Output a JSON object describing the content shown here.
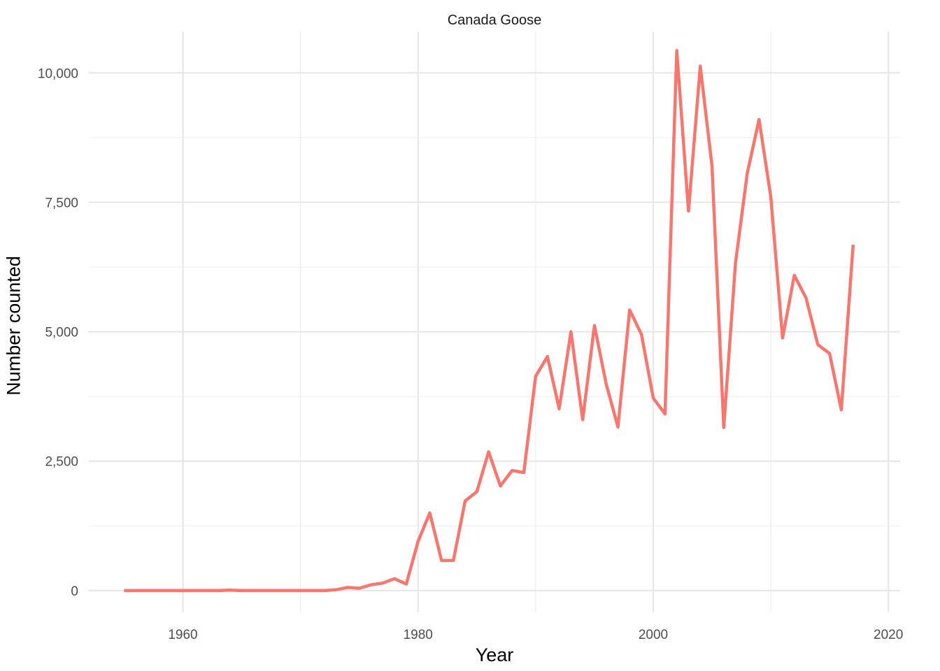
{
  "chart_data": {
    "type": "line",
    "title": "Canada Goose",
    "xlabel": "Year",
    "ylabel": "Number counted",
    "xlim": [
      1952,
      2021
    ],
    "ylim": [
      -420,
      10800
    ],
    "x_ticks": [
      1960,
      1980,
      2000,
      2020
    ],
    "x_tick_labels": [
      "1960",
      "1980",
      "2000",
      "2020"
    ],
    "x_minor_ticks": [
      1970,
      1990,
      2010
    ],
    "y_ticks": [
      0,
      2500,
      5000,
      7500,
      10000
    ],
    "y_tick_labels": [
      "0",
      "2,500",
      "5,000",
      "7,500",
      "10,000"
    ],
    "y_minor_ticks": [
      1250,
      3750,
      6250,
      8750
    ],
    "grid": true,
    "legend": "none",
    "line_color": "#F8766D",
    "series": [
      {
        "x": [
          1955,
          1956,
          1957,
          1958,
          1959,
          1960,
          1961,
          1962,
          1963,
          1964,
          1965,
          1966,
          1967,
          1968,
          1969,
          1970,
          1971,
          1972,
          1973,
          1974,
          1975,
          1976,
          1977,
          1978,
          1979,
          1980,
          1981,
          1982,
          1983,
          1984,
          1985,
          1986,
          1987,
          1988,
          1989,
          1990,
          1991,
          1992,
          1993,
          1994,
          1995,
          1996,
          1997,
          1998,
          1999,
          2000,
          2001,
          2002,
          2003,
          2004,
          2005,
          2006,
          2007,
          2008,
          2009,
          2010,
          2011,
          2012,
          2013,
          2014,
          2015,
          2016,
          2017
        ],
        "values": [
          0,
          0,
          0,
          0,
          0,
          0,
          0,
          0,
          0,
          10,
          0,
          0,
          0,
          0,
          0,
          0,
          0,
          0,
          15,
          60,
          45,
          110,
          145,
          230,
          125,
          950,
          1500,
          580,
          580,
          1730,
          1910,
          2680,
          2020,
          2320,
          2280,
          4140,
          4520,
          3510,
          5000,
          3300,
          5120,
          3990,
          3160,
          5420,
          4950,
          3720,
          3410,
          10430,
          7330,
          10130,
          8200,
          3150,
          6330,
          8060,
          9100,
          7600,
          4880,
          6090,
          5650,
          4750,
          4580,
          3490,
          6680
        ]
      }
    ]
  }
}
